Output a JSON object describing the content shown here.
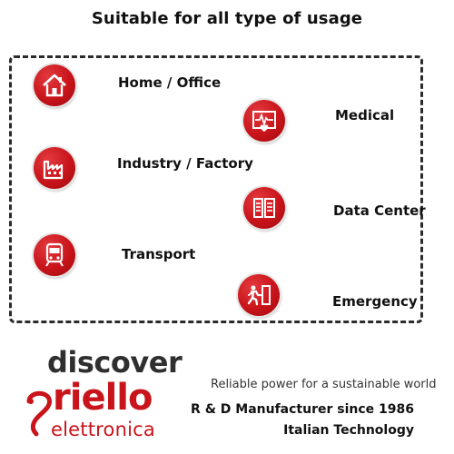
{
  "title": "Suitable for all type of usage",
  "usages": [
    {
      "label": "Home / Office",
      "icon": "house-icon"
    },
    {
      "label": "Medical",
      "icon": "medical-heartbeat-icon"
    },
    {
      "label": "Industry / Factory",
      "icon": "factory-icon"
    },
    {
      "label": "Data Center",
      "icon": "server-rack-icon"
    },
    {
      "label": "Transport",
      "icon": "train-icon"
    },
    {
      "label": "Emergency",
      "icon": "emergency-exit-icon"
    }
  ],
  "brand": {
    "discover": "discover",
    "name": "riello",
    "sub": "elettronica",
    "tagline": "Reliable power for a sustainable world",
    "manufacturer": "R & D Manufacturer since 1986",
    "technology": "Italian Technology"
  },
  "colors": {
    "accent": "#c8141a",
    "text": "#111111",
    "frame": "#2b2b2b"
  }
}
